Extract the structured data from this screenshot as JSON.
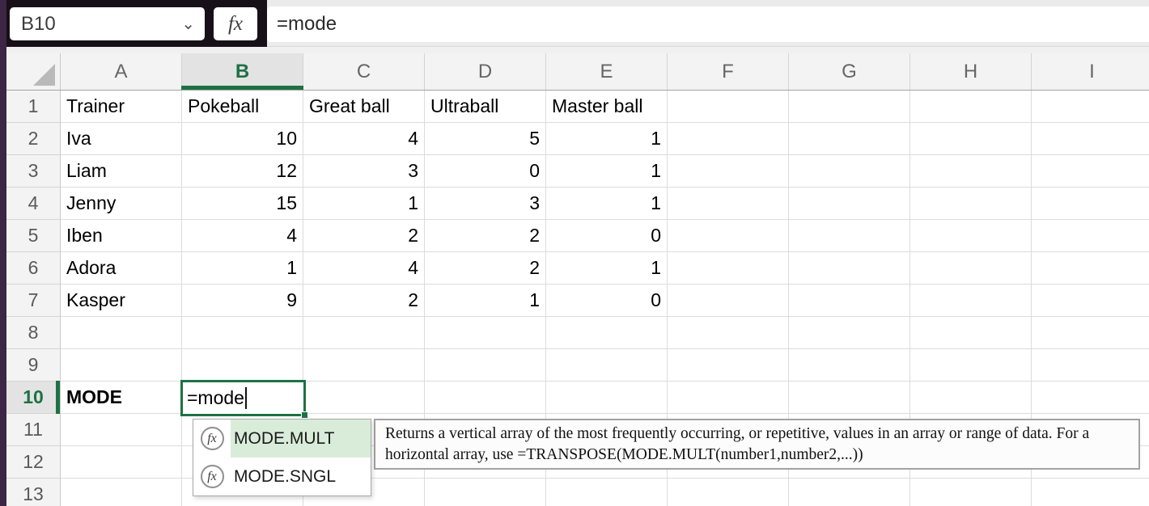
{
  "formula_bar": {
    "cell_reference": "B10",
    "fx_label": "fx",
    "formula_text": "=mode"
  },
  "icons": {
    "chevron_down": "⌄"
  },
  "grid": {
    "column_labels": [
      "A",
      "B",
      "C",
      "D",
      "E",
      "F",
      "G",
      "H",
      "I"
    ],
    "row_labels": [
      "1",
      "2",
      "3",
      "4",
      "5",
      "6",
      "7",
      "8",
      "9",
      "10",
      "11",
      "12",
      "13"
    ],
    "selected_column": "B",
    "selected_row": "10"
  },
  "table": {
    "headers": [
      "Trainer",
      "Pokeball",
      "Great ball",
      "Ultraball",
      "Master ball"
    ],
    "trainers": [
      {
        "name": "Iva",
        "pokeball": "10",
        "great_ball": "4",
        "ultraball": "5",
        "master_ball": "1"
      },
      {
        "name": "Liam",
        "pokeball": "12",
        "great_ball": "3",
        "ultraball": "0",
        "master_ball": "1"
      },
      {
        "name": "Jenny",
        "pokeball": "15",
        "great_ball": "1",
        "ultraball": "3",
        "master_ball": "1"
      },
      {
        "name": "Iben",
        "pokeball": "4",
        "great_ball": "2",
        "ultraball": "2",
        "master_ball": "0"
      },
      {
        "name": "Adora",
        "pokeball": "1",
        "great_ball": "4",
        "ultraball": "2",
        "master_ball": "1"
      },
      {
        "name": "Kasper",
        "pokeball": "9",
        "great_ball": "2",
        "ultraball": "1",
        "master_ball": "0"
      }
    ]
  },
  "mode_row": {
    "label": "MODE",
    "editing_cell": "B10",
    "editing_text": "=mode"
  },
  "autocomplete": {
    "icon": "fx",
    "items": [
      {
        "label": "MODE.MULT",
        "selected": true
      },
      {
        "label": "MODE.SNGL",
        "selected": false
      }
    ]
  },
  "tooltip": {
    "text": "Returns a vertical array of the most frequently occurring, or repetitive, values in an array or range of data. For a horizontal array, use =TRANSPOSE(MODE.MULT(number1,number2,...))"
  },
  "colors": {
    "accent_green": "#1e7145",
    "autocomplete_selection_bg": "#d9ecd9",
    "selected_header_bg": "#e3e3e3",
    "window_edge_purple": "#3d2544",
    "topbar_dark": "#181019"
  }
}
